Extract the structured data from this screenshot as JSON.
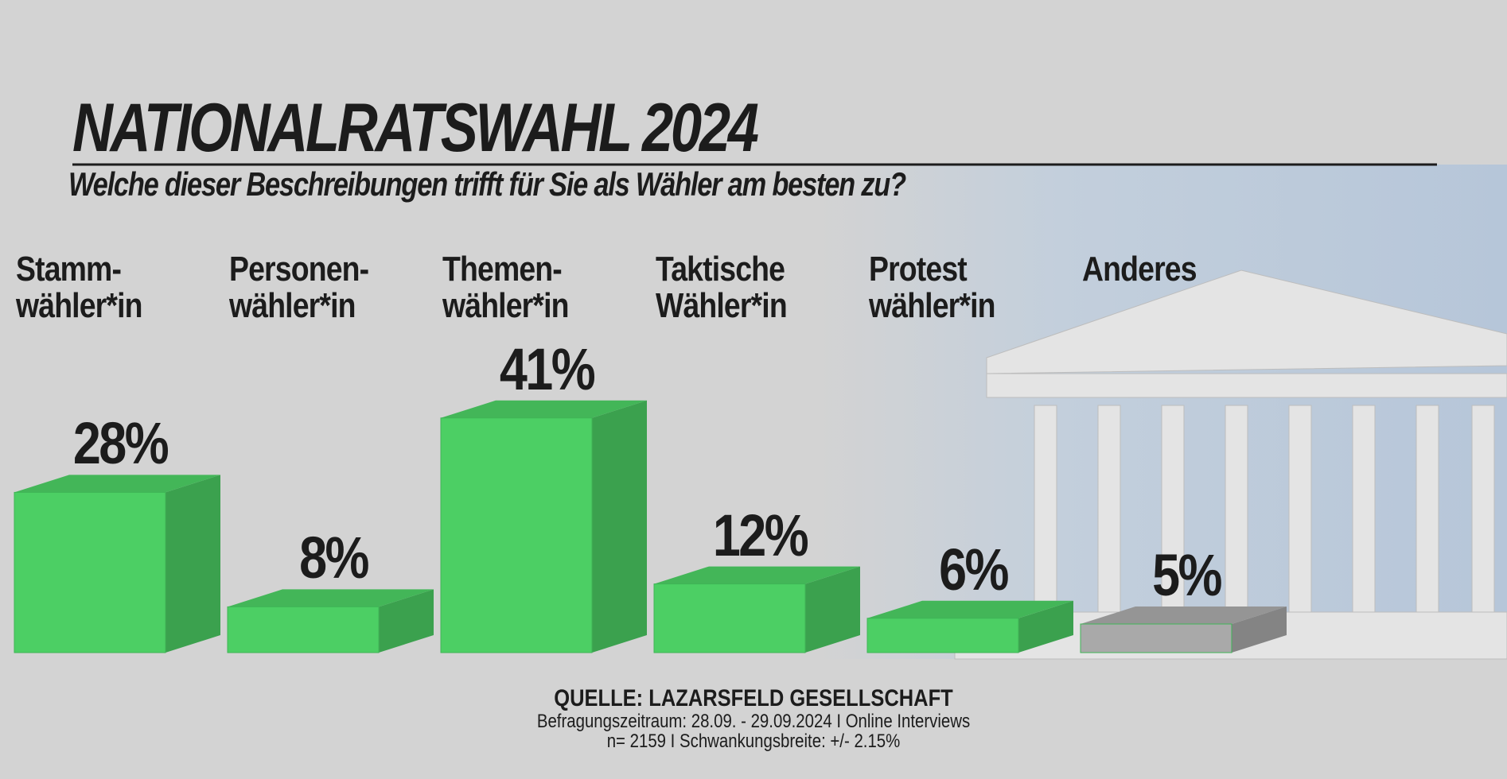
{
  "chart_data": {
    "type": "bar3d",
    "title": "NATIONALRATSWAHL 2024",
    "subtitle": "Welche dieser Beschreibungen trifft für Sie als Wähler am besten zu?",
    "categories": [
      "Stamm-\nwähler*in",
      "Personen-\nwähler*in",
      "Themen-\nwähler*in",
      "Taktische\nWähler*in",
      "Protest\nwähler*in",
      "Anderes"
    ],
    "values": [
      28,
      8,
      41,
      12,
      6,
      5
    ],
    "value_labels": [
      "28%",
      "8%",
      "41%",
      "12%",
      "6%",
      "5%"
    ],
    "colors": [
      "#4ccf64",
      "#4ccf64",
      "#4ccf64",
      "#4ccf64",
      "#4ccf64",
      "#a9a9a9"
    ],
    "source": "QUELLE: LAZARSFELD GESELLSCHAFT",
    "notes": [
      "Befragungszeitraum: 28.09. - 29.09.2024 I Online Interviews",
      "n= 2159 I Schwankungsbreite: +/- 2.15%"
    ]
  }
}
